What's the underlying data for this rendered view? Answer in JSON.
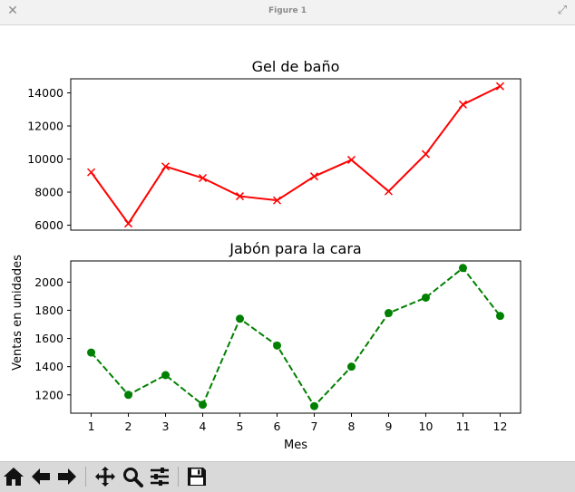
{
  "window": {
    "title": "Figure 1"
  },
  "chart_data": [
    {
      "type": "line",
      "title": "Gel de baño",
      "x": [
        1,
        2,
        3,
        4,
        5,
        6,
        7,
        8,
        9,
        10,
        11,
        12
      ],
      "series": [
        {
          "values": [
            9200,
            6100,
            9550,
            8850,
            7750,
            7500,
            8950,
            9950,
            8050,
            10300,
            13300,
            14400
          ],
          "color": "#ff0000",
          "linestyle": "solid",
          "marker": "x"
        }
      ],
      "ylim": [
        5700,
        14850
      ],
      "yticks": [
        6000,
        8000,
        10000,
        12000,
        14000
      ],
      "ytick_labels": [
        "6000",
        "8000",
        "10000",
        "12000",
        "14000"
      ],
      "xlim": [
        0.45,
        12.55
      ],
      "grid": false,
      "xlabel": "",
      "ylabel": ""
    },
    {
      "type": "line",
      "title": "Jabón para la cara",
      "x": [
        1,
        2,
        3,
        4,
        5,
        6,
        7,
        8,
        9,
        10,
        11,
        12
      ],
      "series": [
        {
          "values": [
            1500,
            1200,
            1340,
            1130,
            1740,
            1550,
            1120,
            1400,
            1780,
            1890,
            2100,
            1760
          ],
          "color": "#008000",
          "linestyle": "dashed",
          "marker": "o"
        }
      ],
      "ylim": [
        1070,
        2150
      ],
      "yticks": [
        1200,
        1400,
        1600,
        1800,
        2000
      ],
      "ytick_labels": [
        "1200",
        "1400",
        "1600",
        "1800",
        "2000"
      ],
      "xlim": [
        0.45,
        12.55
      ],
      "xticks": [
        1,
        2,
        3,
        4,
        5,
        6,
        7,
        8,
        9,
        10,
        11,
        12
      ],
      "xtick_labels": [
        "1",
        "2",
        "3",
        "4",
        "5",
        "6",
        "7",
        "8",
        "9",
        "10",
        "11",
        "12"
      ],
      "grid": false,
      "xlabel": "Mes",
      "ylabel": "Ventas en unidades"
    }
  ],
  "toolbar": {
    "buttons": [
      "home-icon",
      "back-arrow-icon",
      "forward-arrow-icon",
      "pan-icon",
      "zoom-icon",
      "configure-subplots-icon",
      "save-icon"
    ]
  }
}
